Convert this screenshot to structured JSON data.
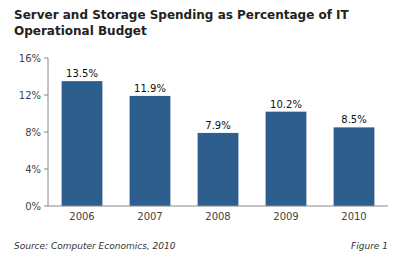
{
  "chart_data": {
    "type": "bar",
    "title": "Server and Storage Spending as Percentage of IT",
    "subtitle": "Operational Budget",
    "categories": [
      "2006",
      "2007",
      "2008",
      "2009",
      "2010"
    ],
    "values": [
      13.5,
      11.9,
      7.9,
      10.2,
      8.5
    ],
    "value_labels": [
      "13.5%",
      "11.9%",
      "7.9%",
      "10.2%",
      "8.5%"
    ],
    "data_labels": true,
    "color": "#2E5E8E",
    "ylim": [
      0,
      16
    ],
    "yticks": [
      {
        "value": 0,
        "label": "0%"
      },
      {
        "value": 4,
        "label": "4%"
      },
      {
        "value": 8,
        "label": "8%"
      },
      {
        "value": 12,
        "label": "12%"
      },
      {
        "value": 16,
        "label": "16%"
      }
    ],
    "grid": false,
    "annotations": [
      "Source: Computer Economics, 2010",
      "Figure 1"
    ]
  }
}
